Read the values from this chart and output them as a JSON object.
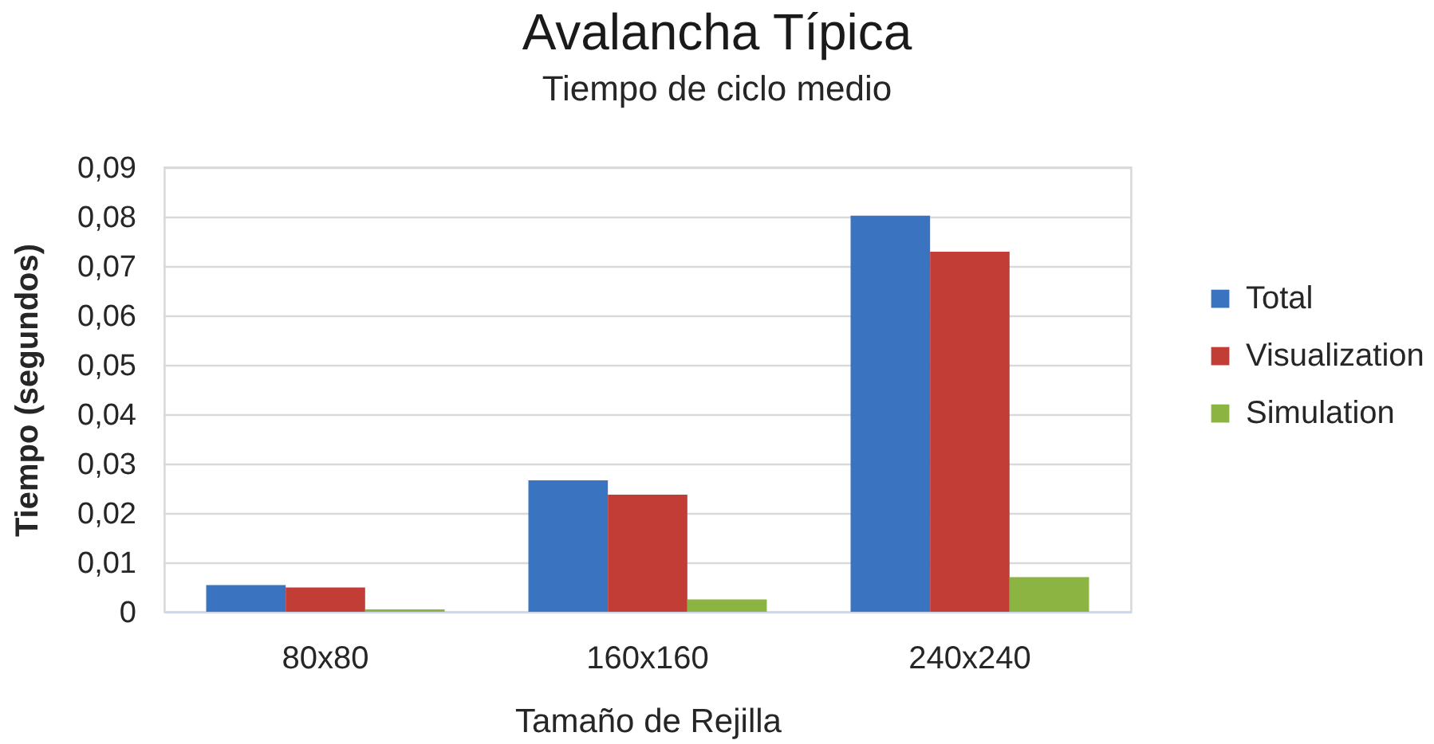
{
  "chart_data": {
    "type": "bar",
    "title": "Avalancha Típica",
    "subtitle": "Tiempo de ciclo medio",
    "xlabel": "Tamaño de Rejilla",
    "ylabel": "Tiempo (segundos)",
    "categories": [
      "80x80",
      "160x160",
      "240x240"
    ],
    "series": [
      {
        "name": "Total",
        "color": "#3a73c0",
        "values": [
          0.0054,
          0.0266,
          0.0802
        ]
      },
      {
        "name": "Visualization",
        "color": "#c33d37",
        "values": [
          0.0049,
          0.0237,
          0.0729
        ]
      },
      {
        "name": "Simulation",
        "color": "#8cb443",
        "values": [
          0.0005,
          0.0025,
          0.007
        ]
      }
    ],
    "ylim": [
      0,
      0.09
    ],
    "yticks": [
      0,
      {
        "value": 0.01,
        "label": "0,01"
      },
      {
        "value": 0.02,
        "label": "0,02"
      },
      {
        "value": 0.03,
        "label": "0,03"
      },
      {
        "value": 0.04,
        "label": "0,04"
      },
      {
        "value": 0.05,
        "label": "0,05"
      },
      {
        "value": 0.06,
        "label": "0,06"
      },
      {
        "value": 0.07,
        "label": "0,07"
      },
      {
        "value": 0.08,
        "label": "0,08"
      },
      {
        "value": 0.09,
        "label": "0,09"
      }
    ],
    "grid": "y",
    "legend": "right"
  }
}
